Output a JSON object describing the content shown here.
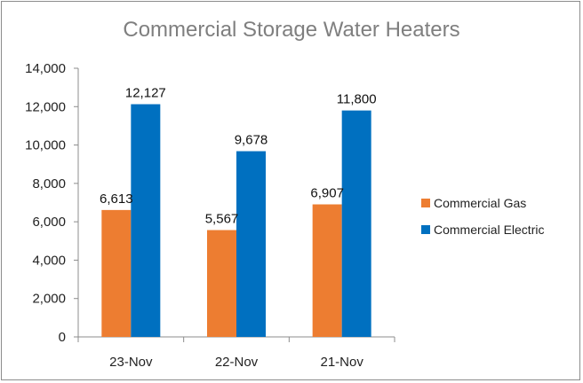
{
  "chart_data": {
    "type": "bar",
    "title": "Commercial Storage Water Heaters",
    "categories": [
      "23-Nov",
      "22-Nov",
      "21-Nov"
    ],
    "series": [
      {
        "name": "Commercial Gas",
        "values": [
          6613,
          5567,
          6907
        ],
        "labels": [
          "6,613",
          "5,567",
          "6,907"
        ],
        "color": "#ed7d31"
      },
      {
        "name": "Commercial Electric",
        "values": [
          12127,
          9678,
          11800
        ],
        "labels": [
          "12,127",
          "9,678",
          "11,800"
        ],
        "color": "#0070c0"
      }
    ],
    "ylim": [
      0,
      14000
    ],
    "yticks": [
      0,
      2000,
      4000,
      6000,
      8000,
      10000,
      12000,
      14000
    ],
    "ytick_labels": [
      "0",
      "2,000",
      "4,000",
      "6,000",
      "8,000",
      "10,000",
      "12,000",
      "14,000"
    ],
    "xlabel": "",
    "ylabel": "",
    "grid": false,
    "legend_position": "right"
  }
}
